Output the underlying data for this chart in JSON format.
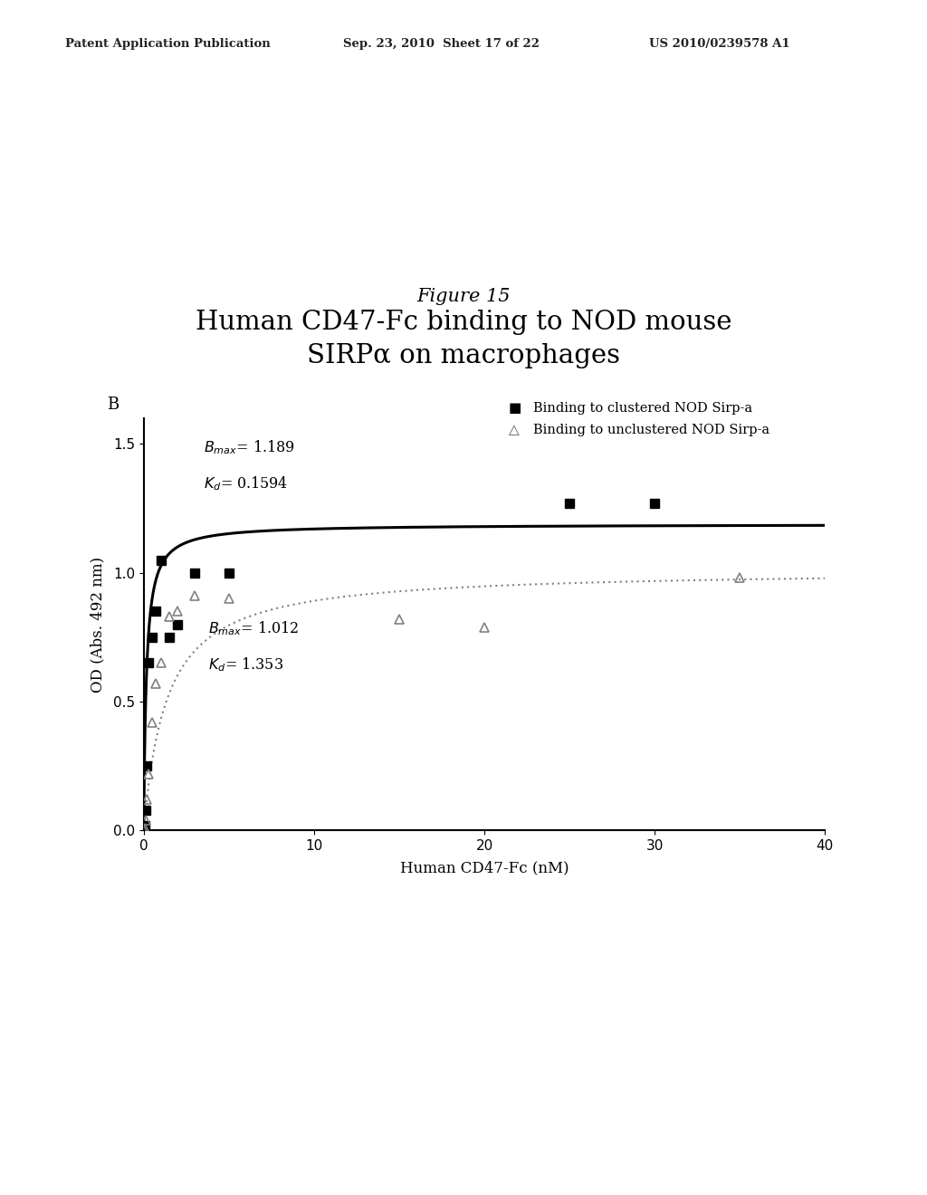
{
  "figure_label": "Figure 15",
  "title_line1": "Human CD47-Fc binding to NOD mouse",
  "title_line2": "SIRPα on macrophages",
  "panel_label": "B",
  "xlabel": "Human CD47-Fc (nM)",
  "ylabel": "OD (Abs. 492 nm)",
  "xlim": [
    0,
    40
  ],
  "ylim": [
    0.0,
    1.6
  ],
  "yticks": [
    0.0,
    0.5,
    1.0,
    1.5
  ],
  "xticks": [
    0,
    10,
    20,
    30,
    40
  ],
  "clustered_Bmax": 1.189,
  "clustered_Kd": 0.1594,
  "unclustered_Bmax": 1.012,
  "unclustered_Kd": 1.353,
  "clustered_data_x": [
    0.0,
    0.05,
    0.1,
    0.2,
    0.3,
    0.5,
    0.7,
    1.0,
    1.5,
    2.0,
    3.0,
    5.0,
    25.0,
    30.0
  ],
  "clustered_data_y": [
    0.0,
    0.02,
    0.08,
    0.25,
    0.65,
    0.75,
    0.85,
    1.05,
    0.75,
    0.8,
    1.0,
    1.0,
    1.27,
    1.27
  ],
  "unclustered_data_x": [
    0.0,
    0.05,
    0.1,
    0.2,
    0.3,
    0.5,
    0.7,
    1.0,
    1.5,
    2.0,
    3.0,
    5.0,
    15.0,
    20.0,
    35.0
  ],
  "unclustered_data_y": [
    0.0,
    0.01,
    0.04,
    0.12,
    0.22,
    0.42,
    0.57,
    0.65,
    0.83,
    0.85,
    0.91,
    0.9,
    0.82,
    0.79,
    0.98
  ],
  "clustered_color": "#000000",
  "unclustered_color": "#808080",
  "legend_clustered": "Binding to clustered NOD Sirp-a",
  "legend_unclustered": "Binding to unclustered NOD Sirp-a",
  "patent_text": "Patent Application Publication",
  "patent_date": "Sep. 23, 2010  Sheet 17 of 22",
  "patent_number": "US 2010/0239578 A1",
  "background_color": "#ffffff"
}
